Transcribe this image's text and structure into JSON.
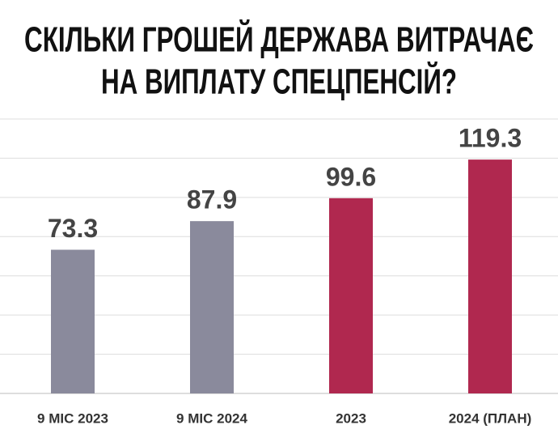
{
  "chart_data": {
    "type": "bar",
    "title": [
      "СКІЛЬКИ ГРОШЕЙ ДЕРЖАВА ВИТРАЧАЄ",
      "НА ВИПЛАТУ СПЕЦПЕНСІЙ?"
    ],
    "categories": [
      "9 МІС 2023",
      "9 МІС 2024",
      "2023",
      "2024 (ПЛАН)"
    ],
    "values": [
      73.3,
      87.9,
      99.6,
      119.3
    ],
    "colors": [
      "#8a8a9c",
      "#8a8a9c",
      "#b0284f",
      "#b0284f"
    ],
    "ylim": [
      0,
      140
    ],
    "yticks": [
      0,
      20,
      40,
      60,
      80,
      100,
      120,
      140
    ],
    "grid": true
  }
}
